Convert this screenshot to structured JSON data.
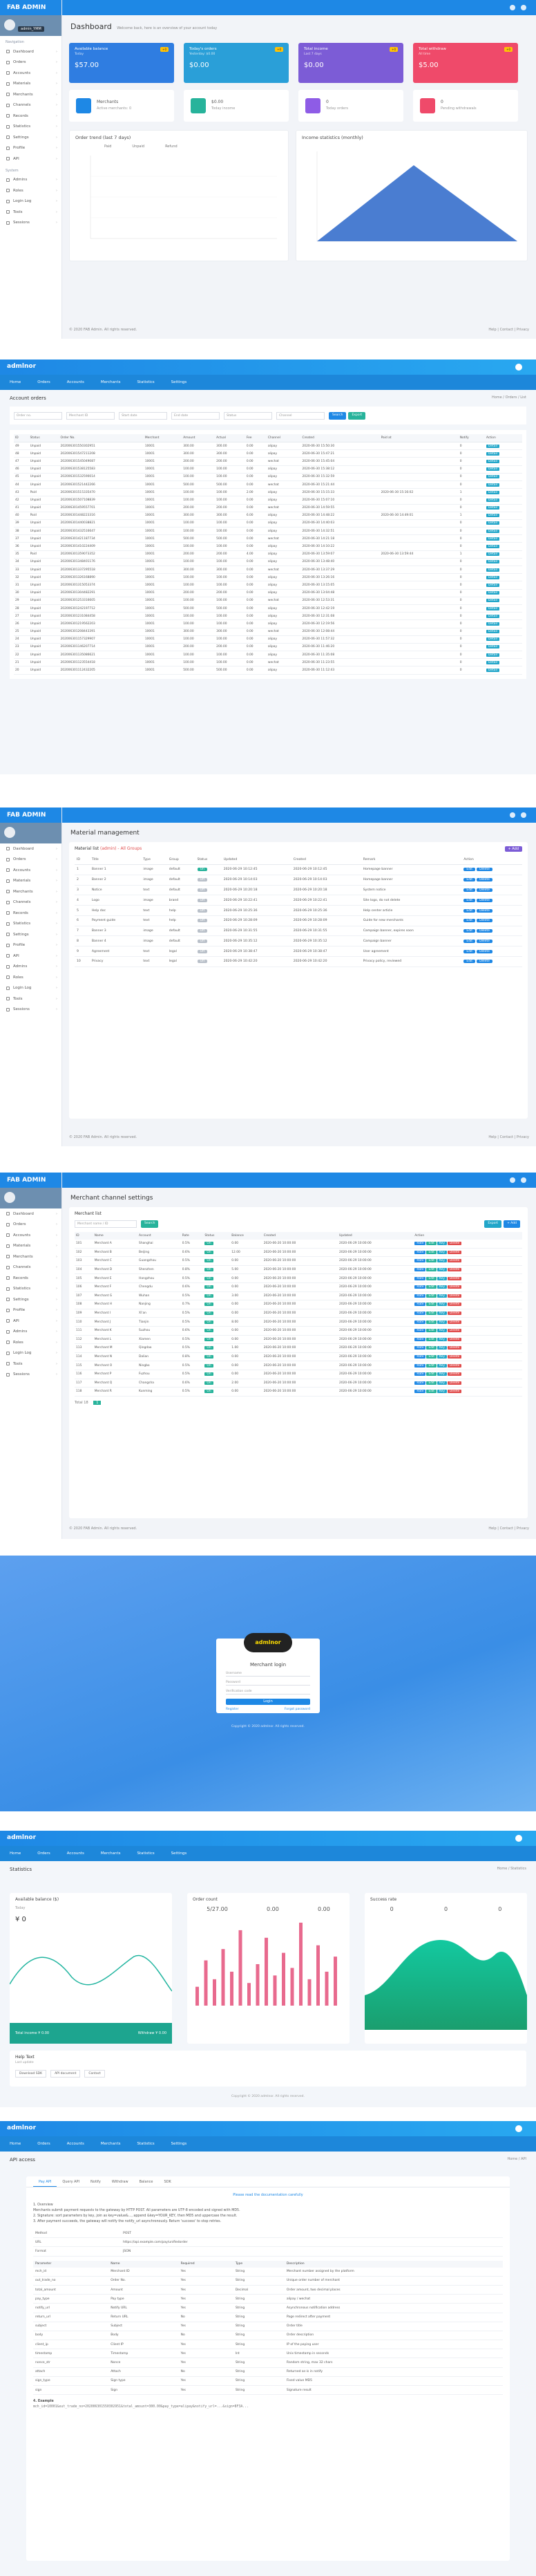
{
  "p1": {
    "brand": "FAB ADMIN",
    "user": "admin_YMM",
    "side_head": "Navigation",
    "menu": [
      "Dashboard",
      "Orders",
      "Accounts",
      "Materials",
      "Merchants",
      "Channels",
      "Records",
      "Statistics",
      "Settings",
      "Profile",
      "API"
    ],
    "menu2_head": "System",
    "menu2": [
      "Admins",
      "Roles",
      "Login Log",
      "Tools",
      "Sessions"
    ],
    "title": "Dashboard",
    "subtitle": "Welcome back, here is an overview of your account today",
    "stats": [
      {
        "label": "Available balance",
        "sub": "Today",
        "value": "$57.00",
        "badge": "+0",
        "color": "#2f7de1"
      },
      {
        "label": "Today's orders",
        "sub": "Yesterday: $0.00",
        "value": "$0.00",
        "badge": "+0",
        "color": "#2a9fd8"
      },
      {
        "label": "Total income",
        "sub": "Last 7 days",
        "value": "$0.00",
        "badge": "+0",
        "color": "#7c5cd6"
      },
      {
        "label": "Total withdraw",
        "sub": "All time",
        "value": "$5.00",
        "badge": "+0",
        "color": "#ef4a6a"
      }
    ],
    "infos": [
      {
        "t1": "Merchants",
        "t2": "Active merchants: 0",
        "color": "#1e88e5"
      },
      {
        "t1": "$0.00",
        "t2": "Today income",
        "color": "#27b39b"
      },
      {
        "t1": "0",
        "t2": "Today orders",
        "color": "#8e5ce6"
      },
      {
        "t1": "0",
        "t2": "Pending withdrawals",
        "color": "#ef4a6a"
      }
    ],
    "card1_title": "Order trend (last 7 days)",
    "card2_title": "Income statistics (monthly)",
    "legend": [
      "Paid",
      "Unpaid",
      "Refund"
    ],
    "footer_left": "© 2020 FAB Admin. All rights reserved.",
    "footer_right": "Help  |  Contact  |  Privacy"
  },
  "p2": {
    "logo": "admlnor",
    "nav": [
      "Home",
      "Orders",
      "Accounts",
      "Merchants",
      "Statistics",
      "Settings"
    ],
    "title": "Account orders",
    "crumb": "Home / Orders / List",
    "filters": [
      "Order no.",
      "Merchant ID",
      "Start date",
      "End date",
      "Status",
      "Channel"
    ],
    "search": "Search",
    "export": "Export",
    "headers": [
      "ID",
      "Status",
      "Order No.",
      "Merchant",
      "Amount",
      "Actual",
      "Fee",
      "Channel",
      "Created",
      "Paid at",
      "Notify",
      "Action"
    ],
    "rows": [
      [
        "49",
        "Unpaid",
        "202006301550302951",
        "10001",
        "300.00",
        "300.00",
        "0.00",
        "alipay",
        "2020-06-30 15:50:30",
        "",
        "0"
      ],
      [
        "48",
        "Unpaid",
        "202006301547211208",
        "10001",
        "300.00",
        "300.00",
        "0.00",
        "alipay",
        "2020-06-30 15:47:21",
        "",
        "0"
      ],
      [
        "47",
        "Unpaid",
        "202006301545049087",
        "10001",
        "200.00",
        "200.00",
        "0.00",
        "wechat",
        "2020-06-30 15:45:04",
        "",
        "0"
      ],
      [
        "46",
        "Unpaid",
        "202006301538125583",
        "10001",
        "100.00",
        "100.00",
        "0.00",
        "alipay",
        "2020-06-30 15:38:12",
        "",
        "0"
      ],
      [
        "45",
        "Unpaid",
        "202006301532590014",
        "10001",
        "100.00",
        "100.00",
        "0.00",
        "alipay",
        "2020-06-30 15:32:59",
        "",
        "0"
      ],
      [
        "44",
        "Unpaid",
        "202006301521442266",
        "10001",
        "500.00",
        "500.00",
        "0.00",
        "wechat",
        "2020-06-30 15:21:44",
        "",
        "0"
      ],
      [
        "43",
        "Paid",
        "202006301515335470",
        "10001",
        "100.00",
        "100.00",
        "2.00",
        "alipay",
        "2020-06-30 15:15:33",
        "2020-06-30 15:16:02",
        "1"
      ],
      [
        "42",
        "Unpaid",
        "202006301507108839",
        "10001",
        "100.00",
        "100.00",
        "0.00",
        "alipay",
        "2020-06-30 15:07:10",
        "",
        "0"
      ],
      [
        "41",
        "Unpaid",
        "202006301459557701",
        "10001",
        "200.00",
        "200.00",
        "0.00",
        "wechat",
        "2020-06-30 14:59:55",
        "",
        "0"
      ],
      [
        "40",
        "Paid",
        "202006301448223316",
        "10001",
        "300.00",
        "300.00",
        "6.00",
        "alipay",
        "2020-06-30 14:48:22",
        "2020-06-30 14:49:01",
        "1"
      ],
      [
        "39",
        "Unpaid",
        "202006301440038821",
        "10001",
        "100.00",
        "100.00",
        "0.00",
        "alipay",
        "2020-06-30 14:40:03",
        "",
        "0"
      ],
      [
        "38",
        "Unpaid",
        "202006301432516647",
        "10001",
        "100.00",
        "100.00",
        "0.00",
        "alipay",
        "2020-06-30 14:32:51",
        "",
        "0"
      ],
      [
        "37",
        "Unpaid",
        "202006301421187734",
        "10001",
        "500.00",
        "500.00",
        "0.00",
        "wechat",
        "2020-06-30 14:21:18",
        "",
        "0"
      ],
      [
        "36",
        "Unpaid",
        "202006301410224409",
        "10001",
        "100.00",
        "100.00",
        "0.00",
        "alipay",
        "2020-06-30 14:10:22",
        "",
        "0"
      ],
      [
        "35",
        "Paid",
        "202006301359073352",
        "10001",
        "200.00",
        "200.00",
        "4.00",
        "alipay",
        "2020-06-30 13:59:07",
        "2020-06-30 13:59:44",
        "1"
      ],
      [
        "34",
        "Unpaid",
        "202006301348401176",
        "10001",
        "100.00",
        "100.00",
        "0.00",
        "alipay",
        "2020-06-30 13:48:40",
        "",
        "0"
      ],
      [
        "33",
        "Unpaid",
        "202006301337295518",
        "10001",
        "300.00",
        "300.00",
        "0.00",
        "wechat",
        "2020-06-30 13:37:29",
        "",
        "0"
      ],
      [
        "32",
        "Unpaid",
        "202006301326168890",
        "10001",
        "100.00",
        "100.00",
        "0.00",
        "alipay",
        "2020-06-30 13:26:16",
        "",
        "0"
      ],
      [
        "31",
        "Unpaid",
        "202006301315053374",
        "10001",
        "100.00",
        "100.00",
        "0.00",
        "alipay",
        "2020-06-30 13:15:05",
        "",
        "0"
      ],
      [
        "30",
        "Unpaid",
        "202006301304482291",
        "10001",
        "200.00",
        "200.00",
        "0.00",
        "alipay",
        "2020-06-30 13:04:48",
        "",
        "0"
      ],
      [
        "29",
        "Unpaid",
        "202006301253316605",
        "10001",
        "100.00",
        "100.00",
        "0.00",
        "wechat",
        "2020-06-30 12:53:31",
        "",
        "0"
      ],
      [
        "28",
        "Unpaid",
        "202006301242197712",
        "10001",
        "500.00",
        "500.00",
        "0.00",
        "alipay",
        "2020-06-30 12:42:19",
        "",
        "0"
      ],
      [
        "27",
        "Unpaid",
        "202006301231084458",
        "10001",
        "100.00",
        "100.00",
        "0.00",
        "alipay",
        "2020-06-30 12:31:08",
        "",
        "0"
      ],
      [
        "26",
        "Unpaid",
        "202006301219562203",
        "10001",
        "100.00",
        "100.00",
        "0.00",
        "alipay",
        "2020-06-30 12:19:56",
        "",
        "0"
      ],
      [
        "25",
        "Unpaid",
        "202006301208443391",
        "10001",
        "300.00",
        "300.00",
        "0.00",
        "wechat",
        "2020-06-30 12:08:44",
        "",
        "0"
      ],
      [
        "24",
        "Unpaid",
        "202006301157329907",
        "10001",
        "100.00",
        "100.00",
        "0.00",
        "alipay",
        "2020-06-30 11:57:32",
        "",
        "0"
      ],
      [
        "23",
        "Unpaid",
        "202006301146207714",
        "10001",
        "200.00",
        "200.00",
        "0.00",
        "alipay",
        "2020-06-30 11:46:20",
        "",
        "0"
      ],
      [
        "22",
        "Unpaid",
        "202006301135086621",
        "10001",
        "100.00",
        "100.00",
        "0.00",
        "alipay",
        "2020-06-30 11:35:08",
        "",
        "0"
      ],
      [
        "21",
        "Unpaid",
        "202006301123554418",
        "10001",
        "100.00",
        "100.00",
        "0.00",
        "wechat",
        "2020-06-30 11:23:55",
        "",
        "0"
      ],
      [
        "20",
        "Unpaid",
        "202006301112432205",
        "10001",
        "500.00",
        "500.00",
        "0.00",
        "alipay",
        "2020-06-30 11:12:43",
        "",
        "0"
      ]
    ],
    "act": "Detail"
  },
  "p3": {
    "brand": "FAB ADMIN",
    "title": "Material management",
    "section": "Material list",
    "section_tag": "(admin) - All Groups",
    "add_btn": "+ Add",
    "headers": [
      "ID",
      "Title",
      "Type",
      "Group",
      "Status",
      "Updated",
      "Created",
      "Remark",
      "Action"
    ],
    "rows": [
      [
        "1",
        "Banner 1",
        "image",
        "default",
        "On",
        "2020-06-29 10:12:45",
        "2020-06-29 10:12:45",
        "Homepage banner"
      ],
      [
        "2",
        "Banner 2",
        "image",
        "default",
        "Off",
        "2020-06-29 10:14:03",
        "2020-06-29 10:14:03",
        "Homepage banner"
      ],
      [
        "3",
        "Notice",
        "text",
        "default",
        "Off",
        "2020-06-29 10:20:18",
        "2020-06-29 10:20:18",
        "System notice"
      ],
      [
        "4",
        "Logo",
        "image",
        "brand",
        "Off",
        "2020-06-29 10:22:41",
        "2020-06-29 10:22:41",
        "Site logo, do not delete"
      ],
      [
        "5",
        "Help doc",
        "text",
        "help",
        "Off",
        "2020-06-29 10:25:36",
        "2020-06-29 10:25:36",
        "Help center article"
      ],
      [
        "6",
        "Payment guide",
        "text",
        "help",
        "Off",
        "2020-06-29 10:28:09",
        "2020-06-29 10:28:09",
        "Guide for new merchants"
      ],
      [
        "7",
        "Banner 3",
        "image",
        "default",
        "Off",
        "2020-06-29 10:31:55",
        "2020-06-29 10:31:55",
        "Campaign banner, expires soon"
      ],
      [
        "8",
        "Banner 4",
        "image",
        "default",
        "Off",
        "2020-06-29 10:35:12",
        "2020-06-29 10:35:12",
        "Campaign banner"
      ],
      [
        "9",
        "Agreement",
        "text",
        "legal",
        "Off",
        "2020-06-29 10:38:47",
        "2020-06-29 10:38:47",
        "User agreement"
      ],
      [
        "10",
        "Privacy",
        "text",
        "legal",
        "Off",
        "2020-06-29 10:42:20",
        "2020-06-29 10:42:20",
        "Privacy policy, reviewed"
      ]
    ],
    "edit": "Edit",
    "del": "Delete",
    "footer_left": "© 2020 FAB Admin. All rights reserved.",
    "footer_right": "Help  |  Contact  |  Privacy"
  },
  "p4": {
    "brand": "FAB ADMIN",
    "title": "Merchant channel settings",
    "section": "Merchant list",
    "search_ph": "Merchant name / ID",
    "search_btn": "Search",
    "top_btns": [
      "Export",
      "+ Add"
    ],
    "headers": [
      "ID",
      "Name",
      "Account",
      "Rate",
      "Status",
      "Balance",
      "Created",
      "Updated",
      "Action"
    ],
    "rows": [
      [
        "101",
        "Merchant A",
        "Shanghai",
        "0.5%",
        "On",
        "0.00",
        "2020-06-20 10:00:00",
        "2020-06-29 10:00:00"
      ],
      [
        "102",
        "Merchant B",
        "Beijing",
        "0.6%",
        "On",
        "12.00",
        "2020-06-20 10:00:00",
        "2020-06-29 10:00:00"
      ],
      [
        "103",
        "Merchant C",
        "Guangzhou",
        "0.5%",
        "On",
        "0.00",
        "2020-06-20 10:00:00",
        "2020-06-29 10:00:00"
      ],
      [
        "104",
        "Merchant D",
        "Shenzhen",
        "0.8%",
        "On",
        "5.00",
        "2020-06-20 10:00:00",
        "2020-06-29 10:00:00"
      ],
      [
        "105",
        "Merchant E",
        "Hangzhou",
        "0.5%",
        "On",
        "0.00",
        "2020-06-20 10:00:00",
        "2020-06-29 10:00:00"
      ],
      [
        "106",
        "Merchant F",
        "Chengdu",
        "0.6%",
        "On",
        "0.00",
        "2020-06-20 10:00:00",
        "2020-06-29 10:00:00"
      ],
      [
        "107",
        "Merchant G",
        "Wuhan",
        "0.5%",
        "On",
        "3.00",
        "2020-06-20 10:00:00",
        "2020-06-29 10:00:00"
      ],
      [
        "108",
        "Merchant H",
        "Nanjing",
        "0.7%",
        "On",
        "0.00",
        "2020-06-20 10:00:00",
        "2020-06-29 10:00:00"
      ],
      [
        "109",
        "Merchant I",
        "Xi'an",
        "0.5%",
        "On",
        "0.00",
        "2020-06-20 10:00:00",
        "2020-06-29 10:00:00"
      ],
      [
        "110",
        "Merchant J",
        "Tianjin",
        "0.5%",
        "On",
        "8.00",
        "2020-06-20 10:00:00",
        "2020-06-29 10:00:00"
      ],
      [
        "111",
        "Merchant K",
        "Suzhou",
        "0.6%",
        "On",
        "0.00",
        "2020-06-20 10:00:00",
        "2020-06-29 10:00:00"
      ],
      [
        "112",
        "Merchant L",
        "Xiamen",
        "0.5%",
        "On",
        "0.00",
        "2020-06-20 10:00:00",
        "2020-06-29 10:00:00"
      ],
      [
        "113",
        "Merchant M",
        "Qingdao",
        "0.5%",
        "On",
        "1.00",
        "2020-06-20 10:00:00",
        "2020-06-29 10:00:00"
      ],
      [
        "114",
        "Merchant N",
        "Dalian",
        "0.8%",
        "On",
        "0.00",
        "2020-06-20 10:00:00",
        "2020-06-29 10:00:00"
      ],
      [
        "115",
        "Merchant O",
        "Ningbo",
        "0.5%",
        "On",
        "0.00",
        "2020-06-20 10:00:00",
        "2020-06-29 10:00:00"
      ],
      [
        "116",
        "Merchant P",
        "Fuzhou",
        "0.5%",
        "On",
        "0.00",
        "2020-06-20 10:00:00",
        "2020-06-29 10:00:00"
      ],
      [
        "117",
        "Merchant Q",
        "Changsha",
        "0.6%",
        "On",
        "2.00",
        "2020-06-20 10:00:00",
        "2020-06-29 10:00:00"
      ],
      [
        "118",
        "Merchant R",
        "Kunming",
        "0.5%",
        "On",
        "0.00",
        "2020-06-20 10:00:00",
        "2020-06-29 10:00:00"
      ]
    ],
    "acts": [
      "Rate",
      "Edit",
      "Key",
      "Delete"
    ],
    "pager": "Total 18",
    "footer_left": "© 2020 FAB Admin. All rights reserved.",
    "footer_right": "Help  |  Contact  |  Privacy"
  },
  "p5": {
    "logo_text": "admlnor",
    "title": "Merchant login",
    "user_ph": "Username",
    "pass_ph": "Password",
    "code_ph": "Verification code",
    "btn": "Login",
    "link_left": "Register",
    "link_right": "Forgot password",
    "copy": "Copyright © 2020 admlnor. All rights reserved."
  },
  "p6": {
    "logo": "admlnor",
    "nav": [
      "Home",
      "Orders",
      "Accounts",
      "Merchants",
      "Statistics",
      "Settings"
    ],
    "title": "Statistics",
    "crumb": "Home / Statistics",
    "c1_head": "Available balance ($)",
    "c1_sub": "Today",
    "c1_val": "¥ 0",
    "c1_foot_left": "Total income  ¥ 0.00",
    "c1_foot_right": "Withdraw  ¥ 0.00",
    "c2_head": "Order count",
    "c2_stats": [
      "5/27.00",
      "0.00",
      "0.00"
    ],
    "c3_head": "Success rate",
    "c3_stats": [
      "0",
      "0",
      "0"
    ],
    "bar_chart_data": {
      "type": "bar",
      "values": [
        5,
        12,
        7,
        15,
        9,
        20,
        6,
        11,
        18,
        8,
        14,
        10,
        22,
        7,
        16,
        9,
        13
      ]
    },
    "mini_head": "Help Text",
    "mini_sub": "Last update",
    "mini_btns": [
      "Download SDK",
      "API document",
      "Contact"
    ],
    "copy": "Copyright © 2020 admlnor. All rights reserved."
  },
  "p7": {
    "logo": "admlnor",
    "nav": [
      "Home",
      "Orders",
      "Accounts",
      "Merchants",
      "Statistics",
      "Settings"
    ],
    "title": "API access",
    "crumb": "Home / API",
    "tabs": [
      "Pay API",
      "Query API",
      "Notify",
      "Withdraw",
      "Balance",
      "SDK"
    ],
    "notice": "Please read the documentation carefully",
    "paras": [
      "1. Overview",
      "Merchants submit payment requests to the gateway by HTTP POST. All parameters are UTF-8 encoded and signed with MD5.",
      "2. Signature: sort parameters by key, join as key=value&..., append &key=YOUR_KEY, then MD5 and uppercase the result.",
      "3. After payment succeeds, the gateway will notify the notify_url asynchronously. Return 'success' to stop retries."
    ],
    "info_rows": [
      [
        "Method",
        "POST"
      ],
      [
        "URL",
        "https://api.example.com/pay/unifiedorder"
      ],
      [
        "Format",
        "JSON"
      ]
    ],
    "headers": [
      "Parameter",
      "Name",
      "Required",
      "Type",
      "Description"
    ],
    "rows": [
      [
        "mch_id",
        "Merchant ID",
        "Yes",
        "String",
        "Merchant number assigned by the platform"
      ],
      [
        "out_trade_no",
        "Order No.",
        "Yes",
        "String",
        "Unique order number of merchant"
      ],
      [
        "total_amount",
        "Amount",
        "Yes",
        "Decimal",
        "Order amount, two decimal places"
      ],
      [
        "pay_type",
        "Pay type",
        "Yes",
        "String",
        "alipay / wechat"
      ],
      [
        "notify_url",
        "Notify URL",
        "Yes",
        "String",
        "Asynchronous notification address"
      ],
      [
        "return_url",
        "Return URL",
        "No",
        "String",
        "Page redirect after payment"
      ],
      [
        "subject",
        "Subject",
        "Yes",
        "String",
        "Order title"
      ],
      [
        "body",
        "Body",
        "No",
        "String",
        "Order description"
      ],
      [
        "client_ip",
        "Client IP",
        "Yes",
        "String",
        "IP of the paying user"
      ],
      [
        "timestamp",
        "Timestamp",
        "Yes",
        "Int",
        "Unix timestamp in seconds"
      ],
      [
        "nonce_str",
        "Nonce",
        "Yes",
        "String",
        "Random string, max 32 chars"
      ],
      [
        "attach",
        "Attach",
        "No",
        "String",
        "Returned as-is in notify"
      ],
      [
        "sign_type",
        "Sign type",
        "Yes",
        "String",
        "Fixed value MD5"
      ],
      [
        "sign",
        "Sign",
        "Yes",
        "String",
        "Signature result"
      ]
    ],
    "example_head": "4. Example",
    "example": "mch_id=10001&out_trade_no=202006301550302951&total_amount=300.00&pay_type=alipay&notify_url=...&sign=8F3A..."
  }
}
